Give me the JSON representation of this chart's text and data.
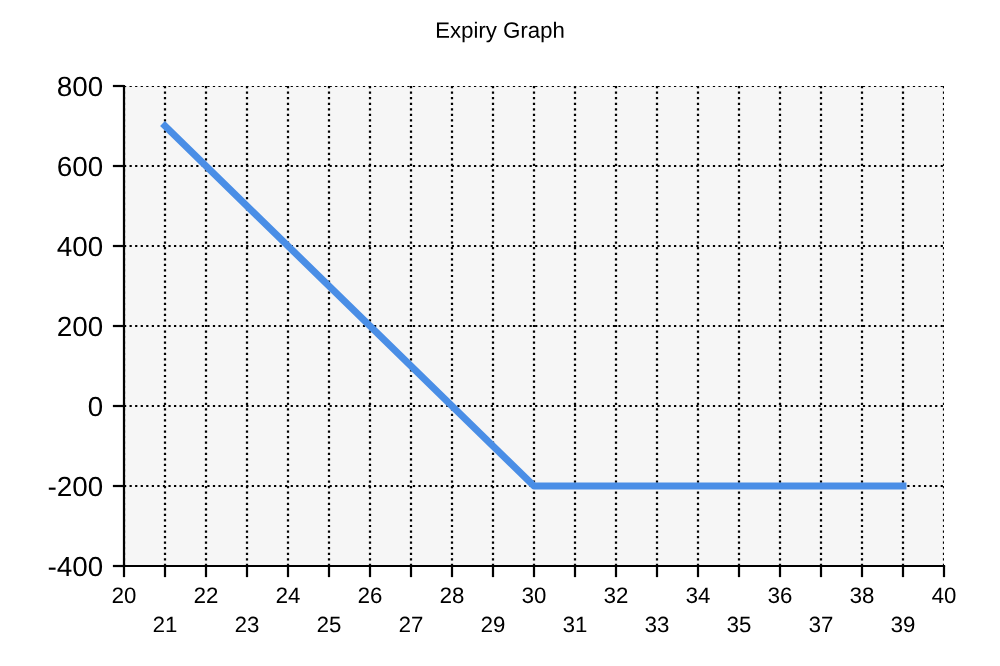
{
  "chart_data": {
    "type": "line",
    "title": "Expiry Graph",
    "x": [
      21,
      30,
      39
    ],
    "series": [
      {
        "color": "#4a8ee6",
        "values": [
          700,
          -200,
          -200
        ]
      }
    ],
    "xlim": [
      20,
      40
    ],
    "xticks": [
      20,
      22,
      24,
      26,
      28,
      30,
      32,
      34,
      36,
      38,
      40
    ],
    "x2lim": [
      20,
      40
    ],
    "x2ticks": [
      21,
      23,
      25,
      27,
      29,
      31,
      33,
      35,
      37,
      39
    ],
    "ylim": [
      -400,
      800
    ],
    "yticks": [
      -400,
      -200,
      0,
      200,
      400,
      600,
      800
    ],
    "grid": true,
    "marker": "none",
    "line_style": "solid"
  }
}
